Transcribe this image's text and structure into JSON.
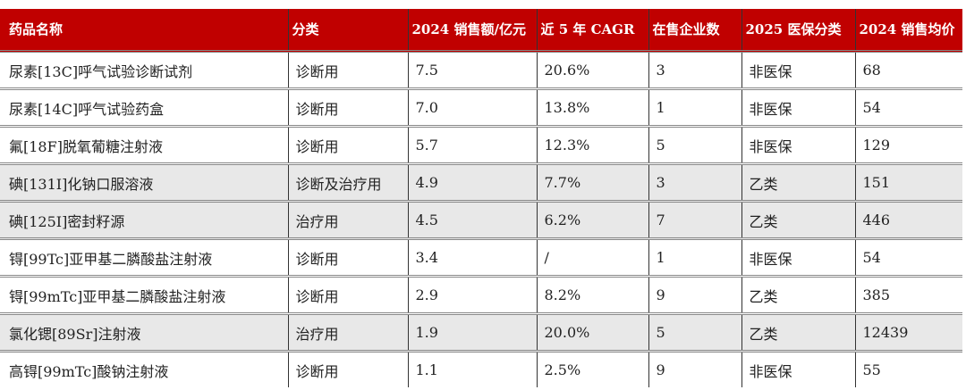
{
  "table": {
    "headers": [
      "药品名称",
      "分类",
      "2024 销售额/亿元",
      "近 5 年 CAGR",
      "在售企业数",
      "2025 医保分类",
      "2024 销售均价"
    ],
    "rows": [
      [
        "尿素[13C]呼气试验诊断试剂",
        "诊断用",
        "7.5",
        "20.6%",
        "3",
        "非医保",
        "68"
      ],
      [
        "尿素[14C]呼气试验药盒",
        "诊断用",
        "7.0",
        "13.8%",
        "1",
        "非医保",
        "54"
      ],
      [
        "氟[18F]脱氧葡糖注射液",
        "诊断用",
        "5.7",
        "12.3%",
        "5",
        "非医保",
        "129"
      ],
      [
        "碘[131I]化钠口服溶液",
        "诊断及治疗用",
        "4.9",
        "7.7%",
        "3",
        "乙类",
        "151"
      ],
      [
        "碘[125I]密封籽源",
        "治疗用",
        "4.5",
        "6.2%",
        "7",
        "乙类",
        "446"
      ],
      [
        "锝[99Tc]亚甲基二膦酸盐注射液",
        "诊断用",
        "3.4",
        "/",
        "1",
        "非医保",
        "54"
      ],
      [
        "锝[99mTc]亚甲基二膦酸盐注射液",
        "诊断用",
        "2.9",
        "8.2%",
        "9",
        "乙类",
        "385"
      ],
      [
        "氯化锶[89Sr]注射液",
        "治疗用",
        "1.9",
        "20.0%",
        "5",
        "乙类",
        "12439"
      ],
      [
        "高锝[99mTc]酸钠注射液",
        "诊断用",
        "1.1",
        "2.5%",
        "9",
        "非医保",
        "55"
      ]
    ],
    "shaded_rows": [
      3,
      4,
      7
    ],
    "header_color": "#c00000"
  }
}
